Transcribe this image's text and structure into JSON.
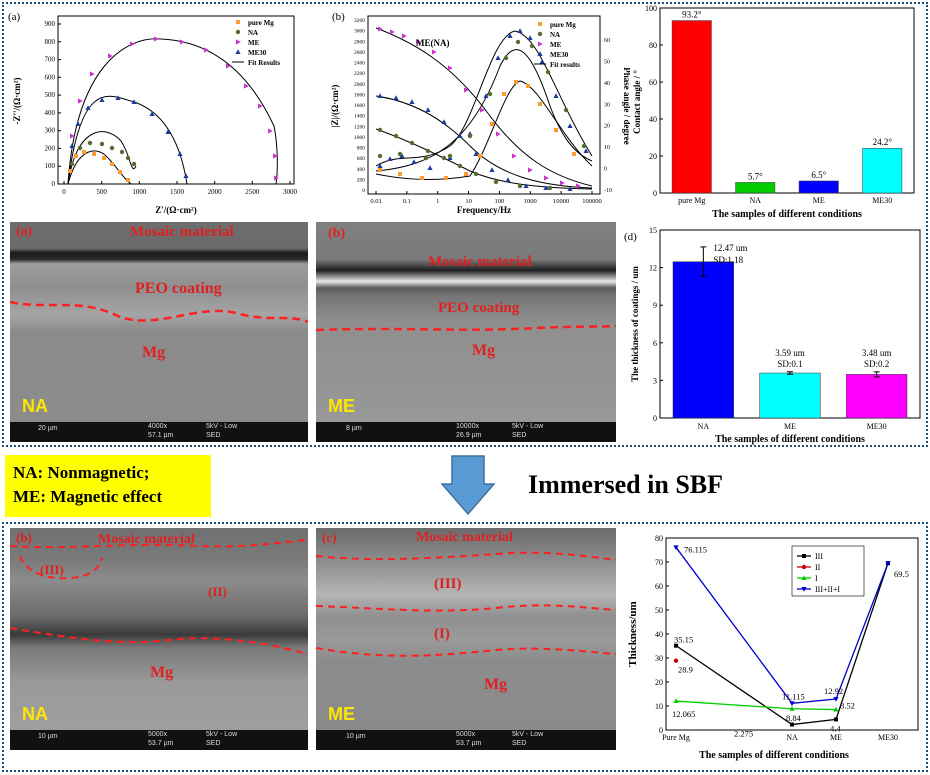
{
  "eis_nyquist": {
    "panel_label": "(a)",
    "xlabel": "Z'/(Ω·cm²)",
    "ylabel": "-Z''/(Ω·cm²)",
    "x_ticks": [
      "0",
      "500",
      "1000",
      "1500",
      "2000",
      "2500",
      "3000"
    ],
    "y_ticks": [
      "0",
      "100",
      "200",
      "300",
      "400",
      "500",
      "600",
      "700",
      "800",
      "900"
    ],
    "legend": [
      "pure Mg",
      "NA",
      "ME",
      "ME30",
      "Fit Results"
    ]
  },
  "eis_bode": {
    "panel_label": "(b)",
    "xlabel": "Frequency/Hz",
    "ylabel_left": "|Z|/(Ω·cm²)",
    "ylabel_right": "Phase angle / degree",
    "x_ticks": [
      "0.01",
      "0.1",
      "1",
      "10",
      "100",
      "1000",
      "10000",
      "100000"
    ],
    "y_ticks_left": [
      "0",
      "200",
      "400",
      "600",
      "800",
      "1000",
      "1200",
      "1400",
      "1600",
      "1800",
      "2000",
      "2200",
      "2400",
      "2600",
      "2800",
      "3000",
      "3200"
    ],
    "y_ticks_right": [
      "-10",
      "0",
      "10",
      "20",
      "30",
      "40",
      "50",
      "60"
    ],
    "annotation": "ME(NA)",
    "legend": [
      "pure Mg",
      "NA",
      "ME",
      "ME30",
      "Fit results"
    ]
  },
  "contact_angle": {
    "chart_data": {
      "type": "bar",
      "categories": [
        "pure Mg",
        "NA",
        "ME",
        "ME30"
      ],
      "values": [
        93.2,
        5.7,
        6.5,
        24.2
      ],
      "data_labels": [
        "93.2°",
        "5.7°",
        "6.5°",
        "24.2°"
      ],
      "colors": [
        "#ff0000",
        "#00cc00",
        "#0000ff",
        "#00ffff"
      ],
      "ylabel": "Contact angle / °",
      "xlabel": "The samples of different conditions",
      "ylim": [
        0,
        100
      ],
      "y_ticks": [
        "0",
        "20",
        "40",
        "60",
        "80",
        "100"
      ]
    }
  },
  "thickness_chart": {
    "panel_label": "(d)",
    "chart_data": {
      "type": "bar",
      "categories": [
        "NA",
        "ME",
        "ME30"
      ],
      "values": [
        12.47,
        3.59,
        3.48
      ],
      "errors": [
        1.18,
        0.1,
        0.2
      ],
      "data_labels": [
        "12.47 um",
        "3.59 um",
        "3.48 um"
      ],
      "sd_labels": [
        "SD:1.18",
        "SD:0.1",
        "SD:0.2"
      ],
      "colors": [
        "#0000ff",
        "#00ffff",
        "#ff00ff"
      ],
      "ylabel": "The thickness of coatings / um",
      "xlabel": "The samples of different conditions",
      "ylim": [
        0,
        15
      ],
      "y_ticks": [
        "0",
        "3",
        "6",
        "9",
        "12",
        "15"
      ]
    }
  },
  "sem_top_left": {
    "panel_label": "(a)",
    "tag": "NA",
    "labels": [
      "Mosaic material",
      "PEO coating",
      "Mg"
    ],
    "bar": [
      "20 µm",
      "4000x",
      "57.1 µm",
      "5kV - Low",
      "SED"
    ]
  },
  "sem_top_right": {
    "panel_label": "(b)",
    "tag": "ME",
    "labels": [
      "Mosaic material",
      "PEO coating",
      "Mg"
    ],
    "bar": [
      "8 µm",
      "10000x",
      "26.9 µm",
      "5kV - Low",
      "SED"
    ]
  },
  "sem_bot_left": {
    "panel_label": "(b)",
    "tag": "NA",
    "labels": [
      "Mosaic material",
      "(III)",
      "(II)",
      "Mg"
    ],
    "bar": [
      "10 µm",
      "5000x",
      "53.7 µm",
      "5kV - Low",
      "SED"
    ]
  },
  "sem_bot_right": {
    "panel_label": "(c)",
    "tag": "ME",
    "labels": [
      "Mosaic material",
      "(III)",
      "(I)",
      "Mg"
    ],
    "bar": [
      "10 µm",
      "5000x",
      "53.7 µm",
      "5kV - Low",
      "SED"
    ]
  },
  "legend_box": {
    "line1": "NA: Nonmagnetic;",
    "line2": "ME: Magnetic effect"
  },
  "immersed_text": "Immersed in SBF",
  "layer_thickness": {
    "chart_data": {
      "type": "line",
      "categories": [
        "Pure Mg",
        "NA",
        "ME",
        "ME30"
      ],
      "series": [
        {
          "name": "III",
          "color": "#000000",
          "values": [
            35.15,
            2.275,
            4.4,
            69.5
          ]
        },
        {
          "name": "II",
          "color": "#cc0000",
          "values": [
            28.9,
            null,
            null,
            null
          ]
        },
        {
          "name": "I",
          "color": "#00cc00",
          "values": [
            12.065,
            8.84,
            8.52,
            null
          ]
        },
        {
          "name": "III+II+I",
          "color": "#0000cc",
          "values": [
            76.115,
            11.115,
            12.92,
            69.5
          ]
        }
      ],
      "data_labels": [
        "76.115",
        "35.15",
        "28.9",
        "12.065",
        "11.115",
        "8.84",
        "2.275",
        "12.92",
        "8.52",
        "4.4",
        "69.5"
      ],
      "ylabel": "Thickness/um",
      "xlabel": "The samples of different conditions",
      "ylim": [
        0,
        80
      ],
      "y_ticks": [
        "0",
        "10",
        "20",
        "30",
        "40",
        "50",
        "60",
        "70",
        "80"
      ]
    }
  }
}
